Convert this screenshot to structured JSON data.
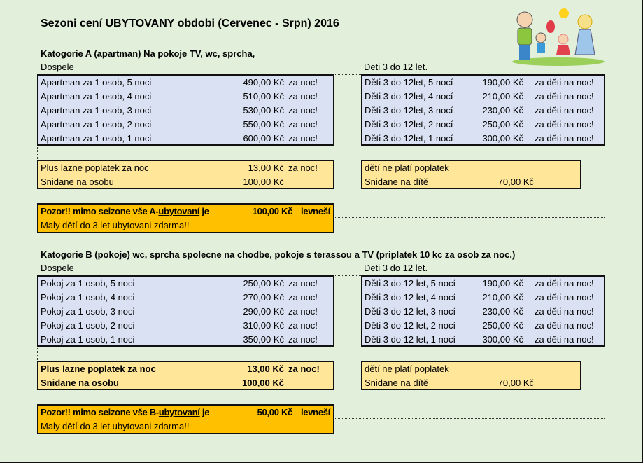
{
  "title": "Sezoni cení UBYTOVANY obdobi (Cervenec - Srpn) 2016",
  "illustration": "family-cartoon-image",
  "categories": [
    {
      "header": "Katogorie A (apartman) Na pokoje TV, wc, sprcha,",
      "adults_label": "Dospele",
      "kids_label": "Deti 3 do 12 let.",
      "adult_rows": [
        {
          "name": "Apartman za 1 osob, 5 noci",
          "price": "490,00 Kč",
          "unit": "za noc!"
        },
        {
          "name": "Apartman za 1 osob, 4 noci",
          "price": "510,00 Kč",
          "unit": "za noc!"
        },
        {
          "name": "Apartman za 1 osob, 3 noci",
          "price": "530,00 Kč",
          "unit": "za noc!"
        },
        {
          "name": "Apartman za 1 osob, 2 noci",
          "price": "550,00 Kč",
          "unit": "za noc!"
        },
        {
          "name": "Apartman za 1 osob, 1 noci",
          "price": "600,00 Kč",
          "unit": "za noc!"
        }
      ],
      "kid_rows": [
        {
          "name": "Děti 3 do 12let, 5 nocí",
          "price": "190,00 Kč",
          "unit": "za děti na noc!"
        },
        {
          "name": "Děti 3 do 12let, 4 nocí",
          "price": "210,00 Kč",
          "unit": "za děti na noc!"
        },
        {
          "name": "Děti 3 do 12let, 3 nocí",
          "price": "230,00 Kč",
          "unit": "za děti na noc!"
        },
        {
          "name": "Děti 3 do 12let, 2 nocí",
          "price": "250,00 Kč",
          "unit": "za děti na noc!"
        },
        {
          "name": "Děti 3 do 12let, 1 nocí",
          "price": "300,00 Kč",
          "unit": "za děti na noc!"
        }
      ],
      "extras_bold": false,
      "adult_extras": [
        {
          "name": "Plus lazne poplatek za noc",
          "price": "13,00 Kč",
          "unit": "za noc!"
        },
        {
          "name": "Snidane na osobu",
          "price": "100,00 Kč",
          "unit": ""
        }
      ],
      "kid_extras": [
        {
          "name": "dětí ne platí poplatek",
          "price": ""
        },
        {
          "name": "Snidane na dítě",
          "price": "70,00 Kč"
        }
      ],
      "notice": {
        "prefix": "Pozor!! mimo seizone vše A-",
        "underlined": "ubytovaní",
        "suffix": " je",
        "price": "100,00 Kč",
        "unit": "levneší"
      },
      "free_note": "Maly dětí do 3 let ubytovani zdarma!!"
    },
    {
      "header": "Katogorie B (pokoje) wc, sprcha spolecne na chodbe, pokoje s terassou a TV (priplatek 10 kc za osob za noc.)",
      "adults_label": "Dospele",
      "kids_label": "Deti 3 do 12 let.",
      "adult_rows": [
        {
          "name": "Pokoj za 1 osob, 5 noci",
          "price": "250,00 Kč",
          "unit": "za noc!"
        },
        {
          "name": "Pokoj za 1 osob, 4 noci",
          "price": "270,00 Kč",
          "unit": "za noc!"
        },
        {
          "name": "Pokoj za 1 osob, 3 noci",
          "price": "290,00 Kč",
          "unit": "za noc!"
        },
        {
          "name": "Pokoj za 1 osob, 2 noci",
          "price": "310,00 Kč",
          "unit": "za noc!"
        },
        {
          "name": "Pokoj za 1 osob, 1 noci",
          "price": "350,00 Kč",
          "unit": "za noc!"
        }
      ],
      "kid_rows": [
        {
          "name": "Děti 3 do 12 let, 5 nocí",
          "price": "190,00 Kč",
          "unit": "za děti na noc!"
        },
        {
          "name": "Děti 3 do 12 let, 4 nocí",
          "price": "210,00 Kč",
          "unit": "za děti na noc!"
        },
        {
          "name": "Děti 3 do 12 let, 3 nocí",
          "price": "230,00 Kč",
          "unit": "za děti na noc!"
        },
        {
          "name": "Děti 3 do 12 let, 2 nocí",
          "price": "250,00 Kč",
          "unit": "za děti na noc!"
        },
        {
          "name": "Děti 3 do 12 let, 1 nocí",
          "price": "300,00 Kč",
          "unit": "za děti na noc!"
        }
      ],
      "extras_bold": true,
      "adult_extras": [
        {
          "name": "Plus lazne poplatek za noc",
          "price": "13,00 Kč",
          "unit": "za noc!"
        },
        {
          "name": "Snidane na osobu",
          "price": "100,00 Kč",
          "unit": ""
        }
      ],
      "kid_extras": [
        {
          "name": "dětí ne platí poplatek",
          "price": ""
        },
        {
          "name": "Snidane na dítě",
          "price": "70,00 Kč"
        }
      ],
      "notice": {
        "prefix": "Pozor!! mimo seizone vše B-",
        "underlined": "ubytovaní",
        "suffix": " je",
        "price": "50,00 Kč",
        "unit": "levneší"
      },
      "free_note": "Maly dětí do 3 let ubytovani zdarma!!"
    }
  ]
}
